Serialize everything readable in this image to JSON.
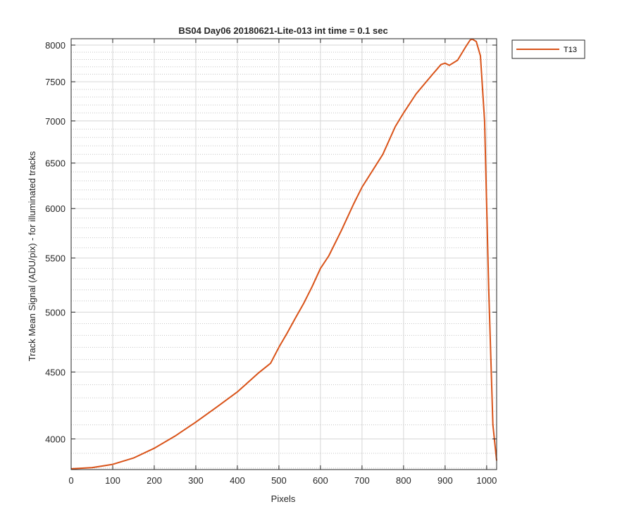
{
  "chart_data": {
    "type": "line",
    "title": "BS04 Day06 20180621-Lite-013 int time = 0.1 sec",
    "xlabel": "Pixels",
    "ylabel": "Track Mean Signal (ADU/pix) - for illuminated tracks",
    "xlim": [
      0,
      1024
    ],
    "ylim": [
      3790,
      8090
    ],
    "y_scale": "log",
    "x_ticks": [
      "0",
      "100",
      "200",
      "300",
      "400",
      "500",
      "600",
      "700",
      "800",
      "900",
      "1000"
    ],
    "y_ticks": [
      "4000",
      "4500",
      "5000",
      "5500",
      "6000",
      "6500",
      "7000",
      "7500",
      "8000"
    ],
    "grid": true,
    "minor_grid": true,
    "legend_position": "outside-top-right",
    "series": [
      {
        "name": "T13",
        "color": "#D95319",
        "x": [
          0,
          50,
          100,
          150,
          200,
          250,
          300,
          350,
          400,
          450,
          480,
          500,
          520,
          540,
          560,
          580,
          600,
          620,
          650,
          680,
          700,
          750,
          780,
          800,
          830,
          850,
          870,
          890,
          900,
          910,
          930,
          950,
          960,
          965,
          975,
          985,
          995,
          1005,
          1015,
          1024
        ],
        "y": [
          3795,
          3803,
          3825,
          3868,
          3935,
          4020,
          4120,
          4230,
          4345,
          4490,
          4570,
          4700,
          4820,
          4950,
          5080,
          5230,
          5400,
          5520,
          5770,
          6050,
          6230,
          6600,
          6930,
          7100,
          7340,
          7470,
          7600,
          7730,
          7750,
          7720,
          7790,
          7980,
          8070,
          8085,
          8050,
          7850,
          7000,
          5200,
          4100,
          3850
        ]
      }
    ]
  }
}
